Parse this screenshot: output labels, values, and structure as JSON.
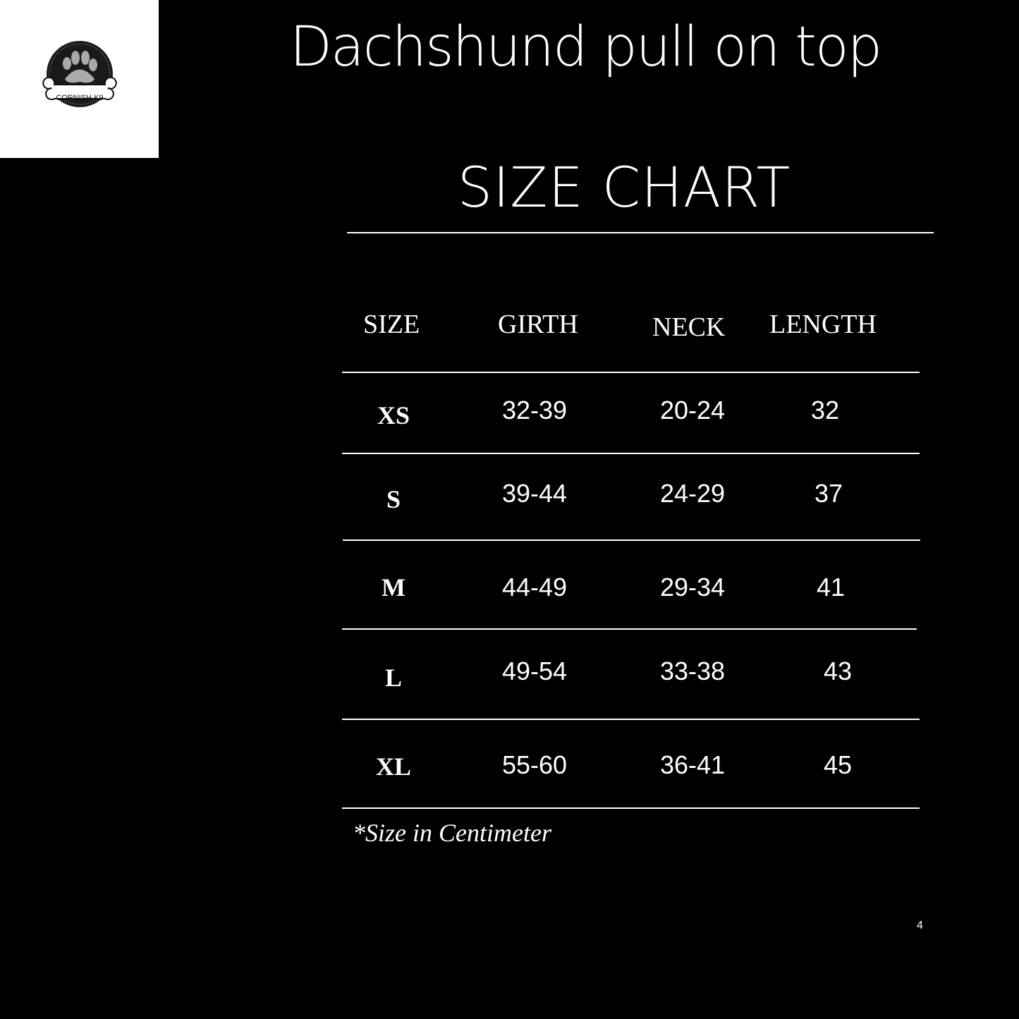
{
  "logo": {
    "text": "CORNISH K9",
    "icon": "paw-on-bone-logo"
  },
  "title": "Dachshund pull on top",
  "subtitle": "SIZE CHART",
  "table": {
    "headers": [
      "SIZE",
      "GIRTH",
      "NECK",
      "LENGTH"
    ],
    "rows": [
      [
        "XS",
        "32-39",
        "20-24",
        "32"
      ],
      [
        "S",
        "39-44",
        "24-29",
        "37"
      ],
      [
        "M",
        "44-49",
        "29-34",
        "41"
      ],
      [
        "L",
        "49-54",
        "33-38",
        "43"
      ],
      [
        "XL",
        "55-60",
        "36-41",
        "45"
      ]
    ]
  },
  "footnote": "*Size in Centimeter",
  "page_number": "4"
}
